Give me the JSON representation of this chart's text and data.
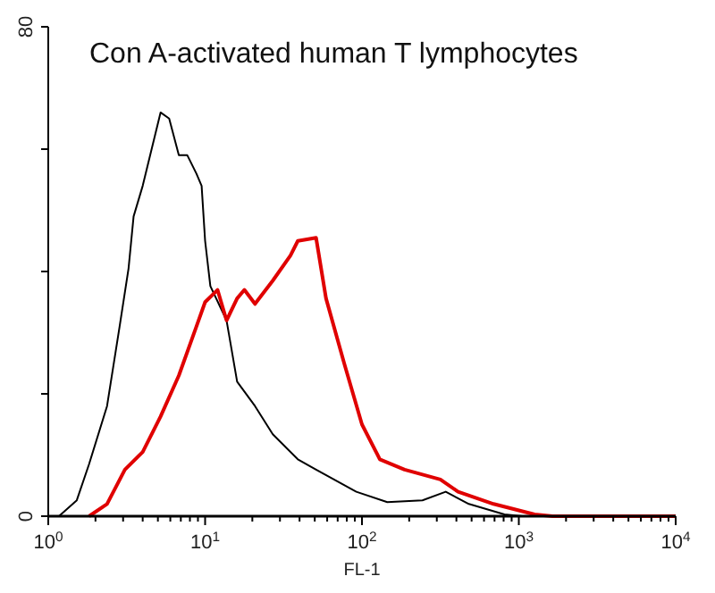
{
  "chart_data": {
    "type": "line",
    "title": "Con A-activated human T lymphocytes",
    "xlabel": "FL-1",
    "log": "x",
    "grid": false,
    "marker": "none",
    "line_style": "solid",
    "xlim": [
      1,
      10000
    ],
    "xticks": [
      {
        "value": 1,
        "label": "10$^{0}$"
      },
      {
        "value": 2,
        "label": null
      },
      {
        "value": 3,
        "label": null
      },
      {
        "value": 4,
        "label": null
      },
      {
        "value": 5,
        "label": null
      },
      {
        "value": 6,
        "label": null
      },
      {
        "value": 7,
        "label": null
      },
      {
        "value": 8,
        "label": null
      },
      {
        "value": 9,
        "label": null
      },
      {
        "value": 10,
        "label": "10$^{1}$"
      },
      {
        "value": 20,
        "label": null
      },
      {
        "value": 30,
        "label": null
      },
      {
        "value": 40,
        "label": null
      },
      {
        "value": 50,
        "label": null
      },
      {
        "value": 60,
        "label": null
      },
      {
        "value": 70,
        "label": null
      },
      {
        "value": 80,
        "label": null
      },
      {
        "value": 90,
        "label": null
      },
      {
        "value": 100,
        "label": "10$^{2}$"
      },
      {
        "value": 200,
        "label": null
      },
      {
        "value": 300,
        "label": null
      },
      {
        "value": 400,
        "label": null
      },
      {
        "value": 500,
        "label": null
      },
      {
        "value": 600,
        "label": null
      },
      {
        "value": 700,
        "label": null
      },
      {
        "value": 800,
        "label": null
      },
      {
        "value": 900,
        "label": null
      },
      {
        "value": 1000,
        "label": "10$^{3}$"
      },
      {
        "value": 2000,
        "label": null
      },
      {
        "value": 3000,
        "label": null
      },
      {
        "value": 4000,
        "label": null
      },
      {
        "value": 5000,
        "label": null
      },
      {
        "value": 6000,
        "label": null
      },
      {
        "value": 7000,
        "label": null
      },
      {
        "value": 8000,
        "label": null
      },
      {
        "value": 9000,
        "label": null
      },
      {
        "value": 10000,
        "label": "10$^{4}$"
      }
    ],
    "ylim": [
      0,
      80
    ],
    "yticks": [
      0,
      {
        "value": 20,
        "label": null
      },
      {
        "value": 40,
        "label": null
      },
      {
        "value": 60,
        "label": null
      },
      80
    ],
    "series": [
      {
        "color": "#000000",
        "x": [
          1.17,
          1.52,
          1.82,
          2.37,
          2.85,
          3.25,
          3.5,
          4.0,
          5.2,
          5.9,
          6.8,
          7.7,
          8.8,
          9.5,
          10,
          10.8,
          13.7,
          16,
          20.8,
          27,
          39,
          51,
          92,
          145,
          243,
          342,
          480,
          810,
          1050
        ],
        "values": [
          0,
          2.6,
          8.5,
          18,
          31,
          40.5,
          49,
          54,
          66,
          65,
          59,
          59,
          56,
          54,
          45,
          37.6,
          32,
          22,
          18,
          13.4,
          9.3,
          7.6,
          4,
          2.3,
          2.6,
          4,
          2,
          0.3,
          0
        ]
      },
      {
        "color": "#e00000",
        "x": [
          1.82,
          2.37,
          3.08,
          4.0,
          5.2,
          6.8,
          8.8,
          10,
          12,
          13.7,
          16,
          17.8,
          20.8,
          27,
          35,
          39,
          51,
          59,
          77,
          100,
          130,
          187,
          316,
          410,
          690,
          1260,
          1640,
          10000
        ],
        "values": [
          0,
          2,
          7.6,
          10.5,
          16.3,
          23,
          31,
          35,
          37,
          32,
          35.6,
          37,
          34.7,
          38.5,
          42.6,
          45,
          45.5,
          35.6,
          25,
          15,
          9.3,
          7.6,
          6,
          4,
          2,
          0.3,
          0,
          0
        ]
      }
    ]
  }
}
